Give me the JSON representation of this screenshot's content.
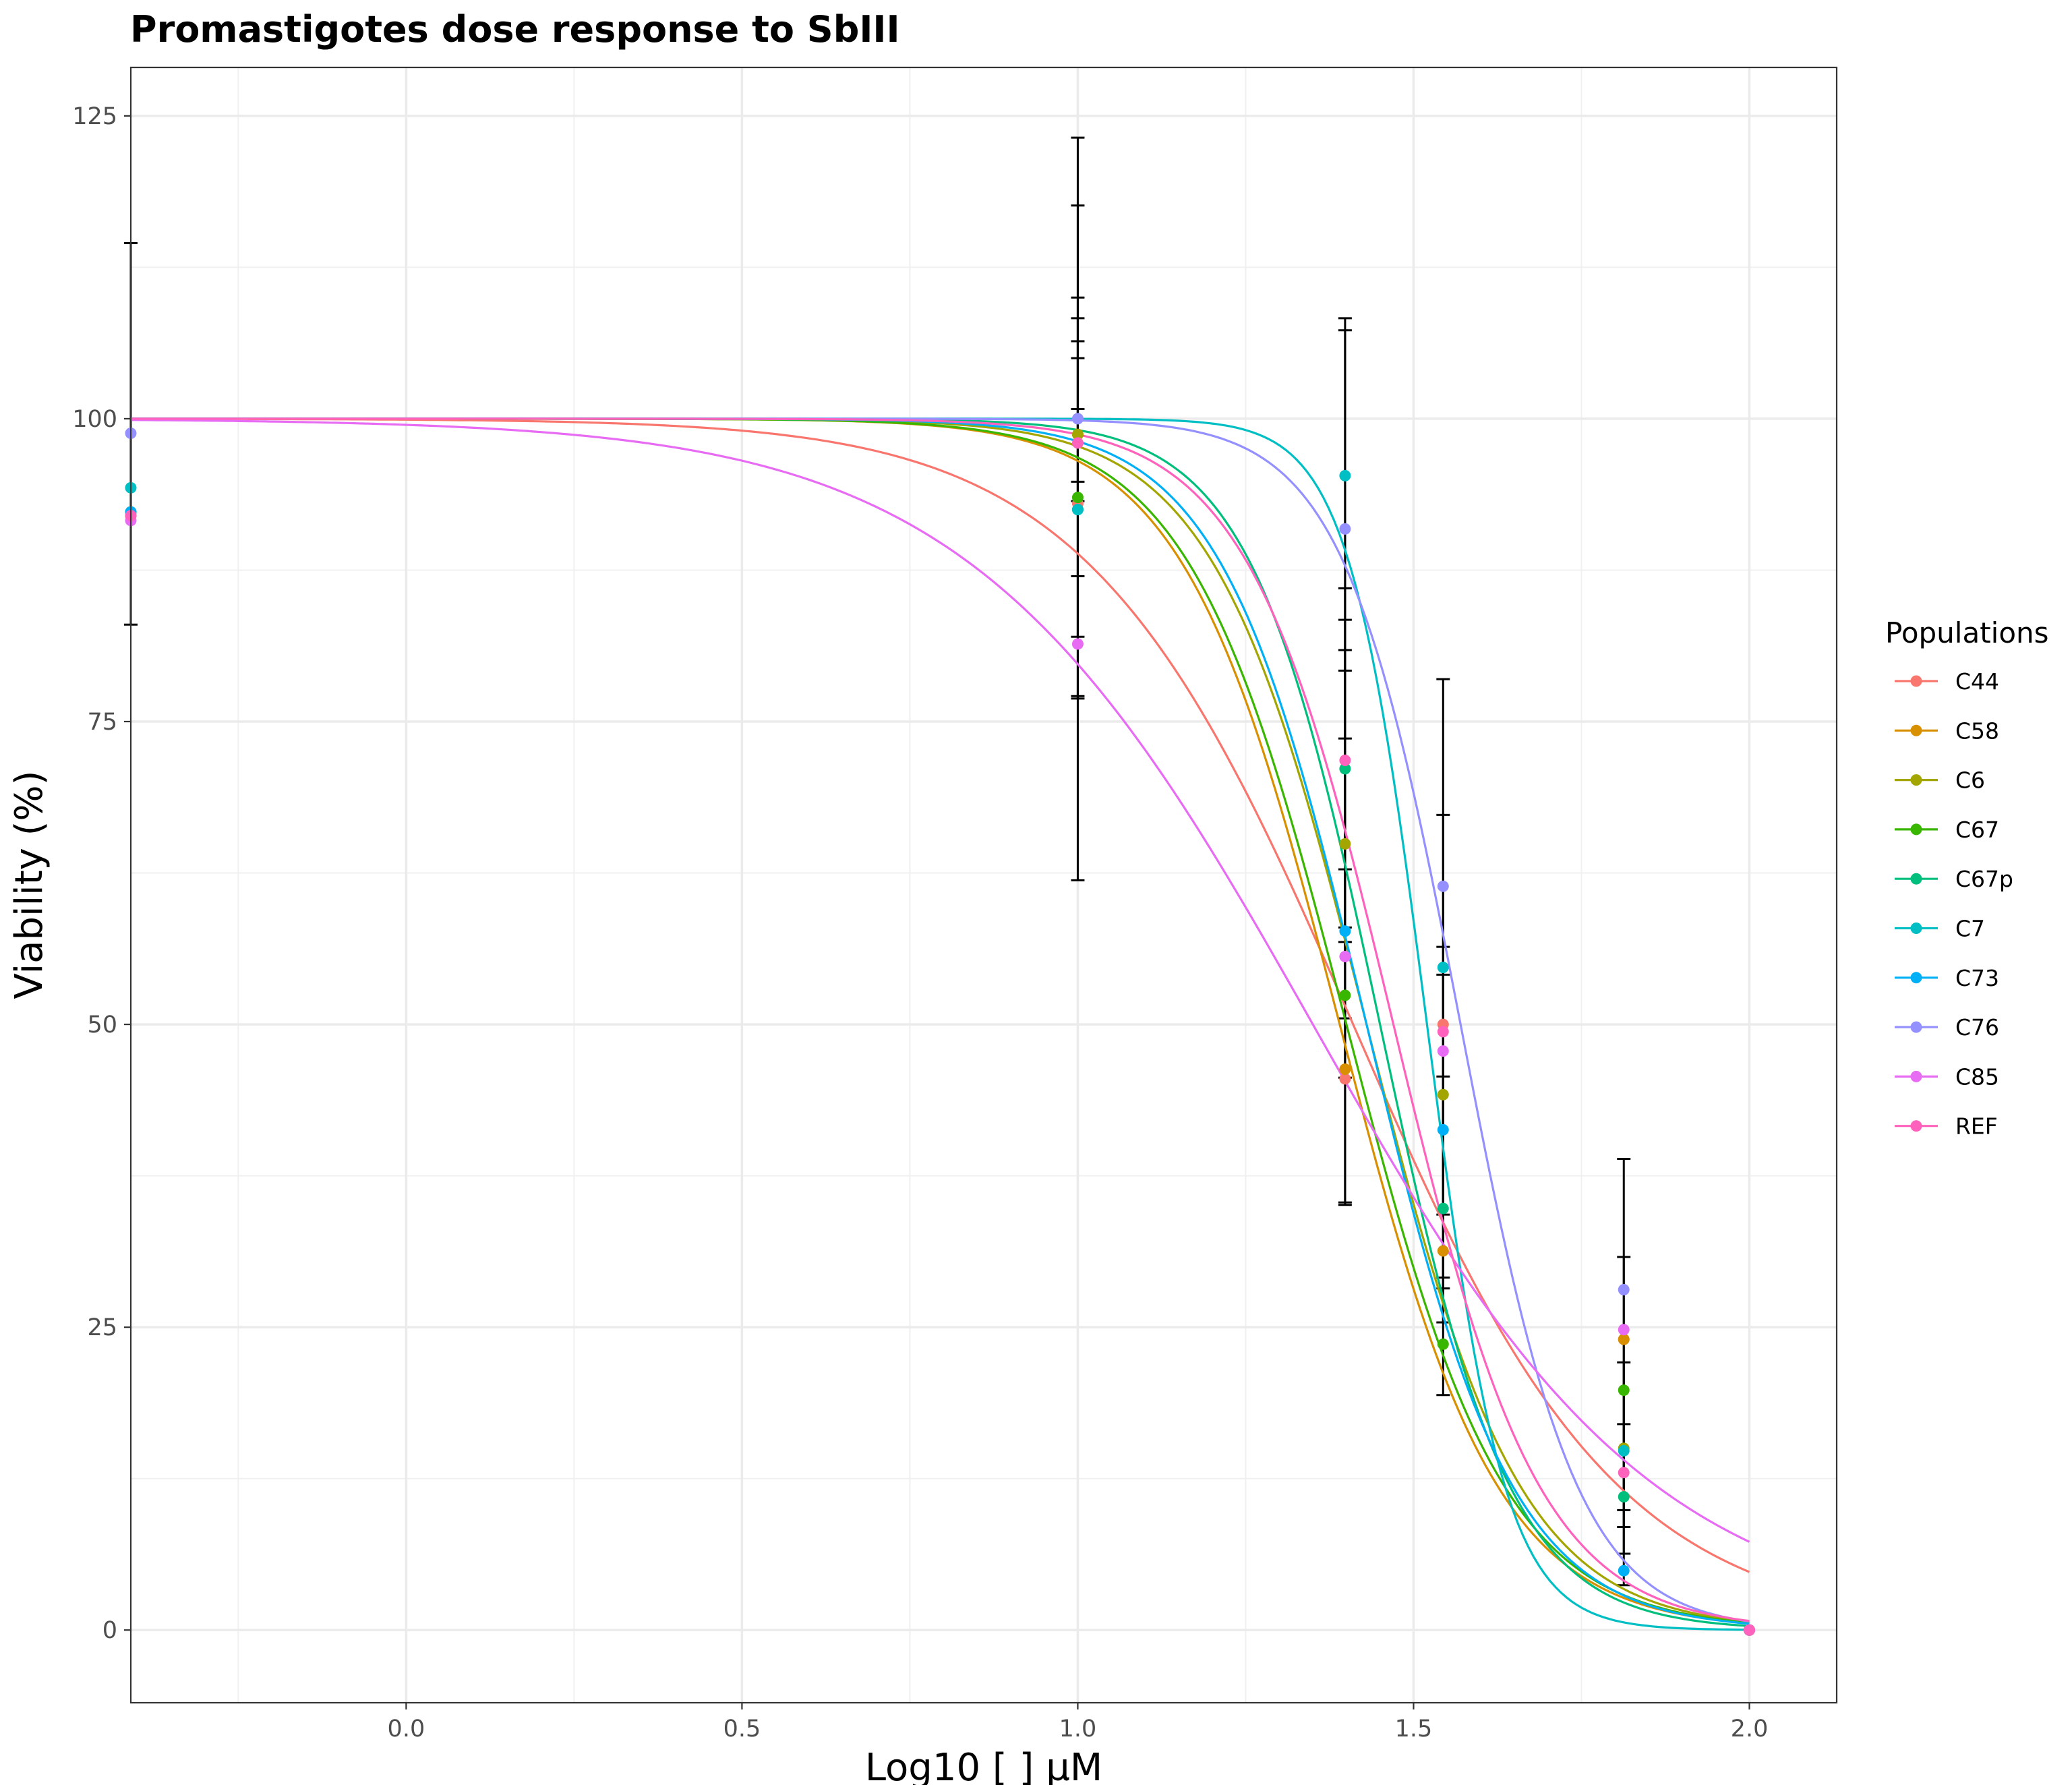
{
  "chart_data": {
    "type": "line",
    "title": "Promastigotes dose response to SbIII",
    "xlabel": "Log10 [ ] µM",
    "ylabel": "Viability (%)",
    "xlim": [
      -0.41,
      2.13
    ],
    "ylim": [
      -6,
      129
    ],
    "x_ticks": [
      0.0,
      0.5,
      1.0,
      1.5,
      2.0
    ],
    "x_tick_labels": [
      "0.0",
      "0.5",
      "1.0",
      "1.5",
      "2.0"
    ],
    "y_ticks": [
      0,
      25,
      50,
      75,
      100,
      125
    ],
    "y_tick_labels": [
      "0",
      "25",
      "50",
      "75",
      "100",
      "125"
    ],
    "grid": true,
    "legend": {
      "title": "Populations",
      "position": "right"
    },
    "x_doses": [
      -0.41,
      1.0,
      1.398,
      1.544,
      1.813,
      2.0
    ],
    "series": [
      {
        "name": "C44",
        "color": "#F8766D",
        "ec50": 1.41,
        "hill": 2.2,
        "points": [
          92.0,
          93.0,
          45.5,
          50.0,
          24.0,
          0
        ]
      },
      {
        "name": "C58",
        "color": "#D89000",
        "ec50": 1.39,
        "hill": 3.7,
        "points": [
          92.0,
          98.7,
          46.3,
          31.3,
          24.0,
          0
        ]
      },
      {
        "name": "C6",
        "color": "#A3A500",
        "ec50": 1.43,
        "hill": 3.8,
        "points": [
          92.0,
          98.7,
          64.9,
          44.2,
          15.0,
          0
        ]
      },
      {
        "name": "C67",
        "color": "#39B600",
        "ec50": 1.4,
        "hill": 3.7,
        "points": [
          92.3,
          93.5,
          52.4,
          23.6,
          19.8,
          0
        ]
      },
      {
        "name": "C67p",
        "color": "#00BF7D",
        "ec50": 1.45,
        "hill": 4.5,
        "points": [
          92.3,
          92.5,
          71.1,
          34.8,
          11.0,
          0
        ]
      },
      {
        "name": "C7",
        "color": "#00BFC4",
        "ec50": 1.52,
        "hill": 7.5,
        "points": [
          94.3,
          92.5,
          95.3,
          54.7,
          14.8,
          0
        ]
      },
      {
        "name": "C73",
        "color": "#00B0F6",
        "ec50": 1.43,
        "hill": 4.0,
        "points": [
          92.3,
          100.0,
          57.7,
          41.3,
          4.9,
          0
        ]
      },
      {
        "name": "C76",
        "color": "#9590FF",
        "ec50": 1.57,
        "hill": 5.0,
        "points": [
          98.8,
          100.0,
          90.9,
          61.4,
          28.1,
          0
        ]
      },
      {
        "name": "C85",
        "color": "#E76BF3",
        "ec50": 1.35,
        "hill": 1.7,
        "points": [
          91.6,
          81.4,
          55.6,
          47.8,
          24.8,
          0
        ]
      },
      {
        "name": "REF",
        "color": "#FF62BC",
        "ec50": 1.47,
        "hill": 4.0,
        "points": [
          92.0,
          98.0,
          71.8,
          49.4,
          13.0,
          0
        ]
      }
    ],
    "error_bars": [
      {
        "x": -0.41,
        "low": 83.0,
        "high": 114.5
      },
      {
        "x": 1.0,
        "low": 61.9,
        "high": 123.2
      },
      {
        "x": 1.0,
        "low": 76.9,
        "high": 117.6
      },
      {
        "x": 1.0,
        "low": 77.1,
        "high": 110.0
      },
      {
        "x": 1.0,
        "low": 82.0,
        "high": 108.3
      },
      {
        "x": 1.0,
        "low": 87.0,
        "high": 106.4
      },
      {
        "x": 1.0,
        "low": 93.2,
        "high": 105.0
      },
      {
        "x": 1.0,
        "low": 94.8,
        "high": 100.8
      },
      {
        "x": 1.398,
        "low": 35.1,
        "high": 108.3
      },
      {
        "x": 1.398,
        "low": 35.3,
        "high": 107.3
      },
      {
        "x": 1.398,
        "low": 45.6,
        "high": 86.0
      },
      {
        "x": 1.398,
        "low": 50.5,
        "high": 83.4
      },
      {
        "x": 1.398,
        "low": 56.8,
        "high": 80.9
      },
      {
        "x": 1.398,
        "low": 58.0,
        "high": 79.2
      },
      {
        "x": 1.398,
        "low": 62.8,
        "high": 73.6
      },
      {
        "x": 1.544,
        "low": 19.4,
        "high": 78.5
      },
      {
        "x": 1.544,
        "low": 25.4,
        "high": 67.3
      },
      {
        "x": 1.544,
        "low": 28.2,
        "high": 56.4
      },
      {
        "x": 1.544,
        "low": 29.1,
        "high": 54.1
      },
      {
        "x": 1.544,
        "low": 34.3,
        "high": 45.7
      },
      {
        "x": 1.813,
        "low": 3.7,
        "high": 38.9
      },
      {
        "x": 1.813,
        "low": 6.3,
        "high": 30.8
      },
      {
        "x": 1.813,
        "low": 8.5,
        "high": 22.1
      },
      {
        "x": 1.813,
        "low": 9.9,
        "high": 17.0
      }
    ]
  }
}
